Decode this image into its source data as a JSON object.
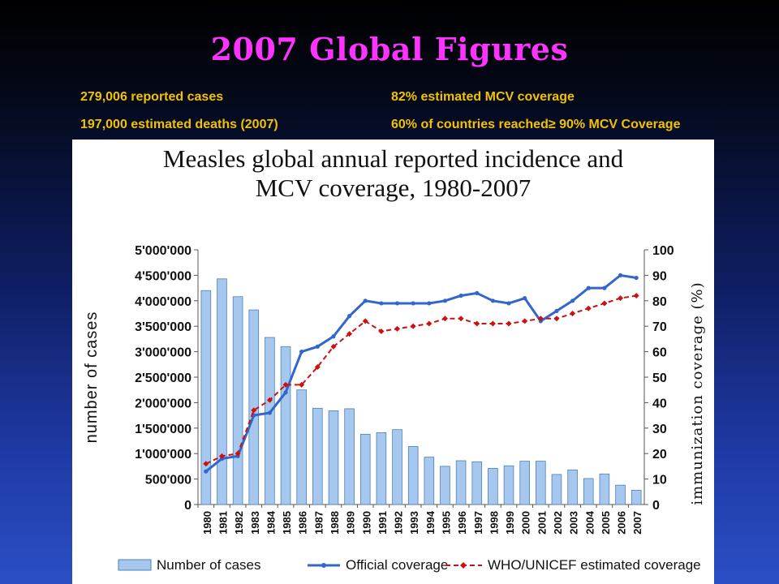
{
  "slide": {
    "title": "2007 Global Figures",
    "stats_left": [
      "279,006 reported cases",
      "197,000 estimated deaths (2007)"
    ],
    "stats_right": [
      "82% estimated MCV coverage",
      "60% of countries reached≥ 90% MCV Coverage"
    ]
  },
  "colors": {
    "title": "#ff33ff",
    "stats": "#f2c200",
    "bars": "#a6c8ef",
    "official": "#3366cc",
    "who_unicef": "#cc1111"
  },
  "chart_data": {
    "type": "bar",
    "title_lines": [
      "Measles global annual reported incidence and",
      "MCV coverage, 1980-2007"
    ],
    "ylabel": "number of cases",
    "y2label": "immunization coverage (%)",
    "ylim": [
      0,
      5000000
    ],
    "y2lim": [
      0,
      100
    ],
    "yticks": [
      "0",
      "500'000",
      "1'000'000",
      "1'500'000",
      "2'000'000",
      "2'500'000",
      "3'000'000",
      "3'500'000",
      "4'000'000",
      "4'500'000",
      "5'000'000"
    ],
    "y2ticks": [
      "0",
      "10",
      "20",
      "30",
      "40",
      "50",
      "60",
      "70",
      "80",
      "90",
      "100"
    ],
    "categories": [
      "1980",
      "1981",
      "1982",
      "1983",
      "1984",
      "1985",
      "1986",
      "1987",
      "1988",
      "1989",
      "1990",
      "1991",
      "1992",
      "1993",
      "1994",
      "1995",
      "1996",
      "1997",
      "1998",
      "1999",
      "2000",
      "2001",
      "2002",
      "2003",
      "2004",
      "2005",
      "2006",
      "2007"
    ],
    "grid": false,
    "legend_position": "bottom",
    "series": [
      {
        "name": "Number of cases",
        "kind": "bar",
        "values": [
          4200000,
          4430000,
          4080000,
          3820000,
          3280000,
          3100000,
          2250000,
          1890000,
          1840000,
          1880000,
          1380000,
          1410000,
          1470000,
          1140000,
          930000,
          750000,
          860000,
          840000,
          710000,
          760000,
          850000,
          850000,
          590000,
          680000,
          510000,
          600000,
          380000,
          279006
        ]
      },
      {
        "name": "Official coverage",
        "kind": "line",
        "values": [
          13,
          18,
          19,
          35,
          36,
          44,
          60,
          62,
          66,
          74,
          80,
          79,
          79,
          79,
          79,
          80,
          82,
          83,
          80,
          79,
          81,
          72,
          76,
          80,
          85,
          85,
          90,
          89
        ]
      },
      {
        "name": "WHO/UNICEF estimated coverage",
        "kind": "line",
        "values": [
          16,
          19,
          20,
          37,
          41,
          47,
          47,
          54,
          62,
          67,
          72,
          68,
          69,
          70,
          71,
          73,
          73,
          71,
          71,
          71,
          72,
          73,
          73,
          75,
          77,
          79,
          81,
          82
        ]
      }
    ]
  }
}
